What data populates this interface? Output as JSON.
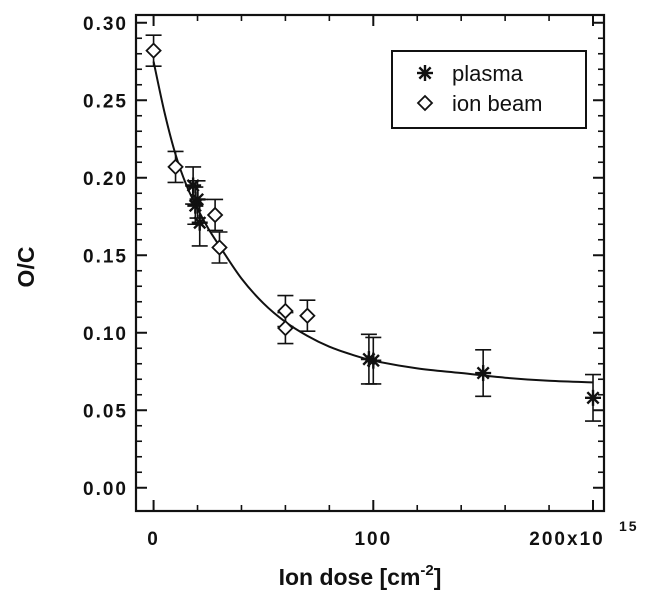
{
  "chart_data": {
    "type": "scatter",
    "title": "",
    "xlabel": "Ion dose [cm",
    "xlabel_sup": "-2",
    "xlabel_close": "]",
    "ylabel": "O/C",
    "xlim": [
      -8,
      205
    ],
    "ylim": [
      -0.015,
      0.305
    ],
    "x_ticks": [
      0,
      100,
      200
    ],
    "x_tick_labels": [
      "0",
      "100",
      "200x10"
    ],
    "x_tick_exponent": "15",
    "y_ticks": [
      0.0,
      0.05,
      0.1,
      0.15,
      0.2,
      0.25,
      0.3
    ],
    "y_tick_labels": [
      "0.00",
      "0.05",
      "0.10",
      "0.15",
      "0.20",
      "0.25",
      "0.30"
    ],
    "legend_position": "top-right",
    "series": [
      {
        "name": "plasma",
        "marker": "asterisk",
        "points": [
          {
            "x": 18,
            "y": 0.195,
            "err": 0.012
          },
          {
            "x": 19,
            "y": 0.182,
            "err": 0.012
          },
          {
            "x": 20,
            "y": 0.186,
            "err": 0.012
          },
          {
            "x": 21,
            "y": 0.171,
            "err": 0.015
          },
          {
            "x": 98,
            "y": 0.083,
            "err": 0.016
          },
          {
            "x": 100,
            "y": 0.082,
            "err": 0.015
          },
          {
            "x": 150,
            "y": 0.074,
            "err": 0.015
          },
          {
            "x": 200,
            "y": 0.058,
            "err": 0.015
          }
        ]
      },
      {
        "name": "ion beam",
        "marker": "diamond",
        "points": [
          {
            "x": 0,
            "y": 0.282,
            "err": 0.01
          },
          {
            "x": 10,
            "y": 0.207,
            "err": 0.01
          },
          {
            "x": 28,
            "y": 0.176,
            "err": 0.01
          },
          {
            "x": 30,
            "y": 0.155,
            "err": 0.01
          },
          {
            "x": 60,
            "y": 0.114,
            "err": 0.01
          },
          {
            "x": 60,
            "y": 0.103,
            "err": 0.01
          },
          {
            "x": 70,
            "y": 0.111,
            "err": 0.01
          }
        ]
      }
    ],
    "fit_curve": {
      "x": [
        0,
        5,
        10,
        15,
        20,
        25,
        30,
        40,
        50,
        60,
        70,
        80,
        90,
        100,
        120,
        140,
        160,
        180,
        200
      ],
      "y": [
        0.275,
        0.242,
        0.215,
        0.195,
        0.18,
        0.167,
        0.156,
        0.135,
        0.119,
        0.107,
        0.098,
        0.091,
        0.086,
        0.082,
        0.077,
        0.074,
        0.071,
        0.069,
        0.068
      ]
    }
  }
}
